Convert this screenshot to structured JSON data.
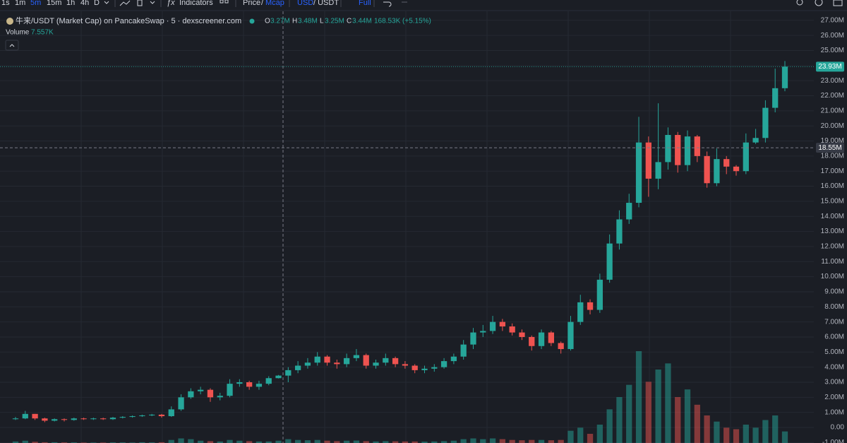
{
  "toolbar": {
    "intervals": [
      "1s",
      "1m",
      "5m",
      "15m",
      "1h",
      "4h",
      "D"
    ],
    "indicators": "Indicators",
    "price": "Price",
    "price_sep": "/",
    "mcap": "Mcap",
    "usd": "USD",
    "usdt": "/ USDT",
    "full": "Full"
  },
  "legend": {
    "title": "牛来/USDT (Market Cap) on PancakeSwap · 5 · dexscreener.com",
    "o_label": "O",
    "o": "3.27M",
    "h_label": "H",
    "h": "3.48M",
    "l_label": "L",
    "l": "3.25M",
    "c_label": "C",
    "c": "3.44M",
    "change": "168.53K (+5.15%)",
    "volume_label": "Volume",
    "volume": "7.557K"
  },
  "chart_data": {
    "type": "candlestick",
    "up_color": "#26a69a",
    "down_color": "#ef5350",
    "open": [
      0.55,
      0.6,
      0.9,
      0.6,
      0.45,
      0.55,
      0.5,
      0.6,
      0.55,
      0.6,
      0.55,
      0.65,
      0.7,
      0.75,
      0.8,
      0.85,
      0.75,
      1.2,
      2.0,
      2.4,
      2.5,
      2.0,
      2.1,
      2.9,
      3.0,
      2.7,
      2.9,
      3.27,
      3.44,
      3.8,
      4.1,
      4.3,
      4.7,
      4.3,
      4.2,
      4.6,
      4.8,
      4.1,
      4.3,
      4.6,
      4.2,
      4.1,
      3.8,
      3.9,
      4.0,
      4.4,
      4.7,
      5.5,
      6.3,
      6.4,
      7.0,
      6.7,
      6.3,
      6.0,
      5.4,
      6.3,
      5.6,
      5.2,
      7.0,
      8.3,
      7.8,
      9.8,
      12.2,
      13.8,
      14.9,
      18.9,
      16.5,
      17.6,
      19.4,
      17.4,
      19.3,
      18.0,
      16.2,
      17.8,
      17.3,
      17.0,
      18.9,
      19.2,
      21.2,
      22.5
    ],
    "high": [
      0.7,
      1.1,
      0.9,
      0.65,
      0.6,
      0.6,
      0.65,
      0.65,
      0.65,
      0.65,
      0.7,
      0.75,
      0.8,
      0.85,
      0.9,
      0.9,
      1.4,
      2.2,
      2.6,
      2.7,
      2.6,
      2.3,
      3.2,
      3.2,
      3.1,
      3.1,
      3.4,
      3.48,
      4.0,
      4.4,
      4.6,
      5.0,
      4.8,
      4.5,
      4.9,
      5.2,
      4.9,
      4.5,
      4.9,
      4.7,
      4.4,
      4.2,
      4.1,
      4.2,
      4.6,
      4.9,
      5.8,
      6.6,
      6.8,
      7.4,
      7.2,
      6.9,
      6.5,
      6.1,
      6.5,
      6.4,
      5.7,
      7.4,
      8.8,
      8.5,
      10.2,
      12.8,
      14.4,
      15.5,
      20.6,
      19.3,
      21.5,
      19.9,
      19.6,
      19.7,
      19.4,
      18.3,
      18.5,
      18.0,
      17.4,
      19.5,
      19.8,
      21.7,
      23.8,
      24.3
    ],
    "low": [
      0.5,
      0.55,
      0.5,
      0.35,
      0.4,
      0.4,
      0.45,
      0.5,
      0.5,
      0.5,
      0.5,
      0.6,
      0.65,
      0.7,
      0.75,
      0.65,
      0.7,
      1.1,
      1.9,
      2.2,
      1.7,
      1.8,
      2.0,
      2.7,
      2.5,
      2.5,
      2.8,
      3.25,
      3.0,
      3.6,
      3.9,
      4.1,
      4.1,
      3.9,
      4.0,
      4.4,
      3.9,
      3.9,
      4.1,
      4.0,
      3.9,
      3.6,
      3.6,
      3.7,
      3.9,
      4.2,
      4.5,
      5.2,
      6.0,
      6.2,
      6.4,
      6.1,
      5.8,
      5.1,
      5.2,
      5.4,
      4.9,
      5.1,
      6.8,
      7.5,
      7.6,
      9.6,
      11.8,
      13.5,
      14.6,
      15.3,
      15.8,
      17.1,
      16.9,
      17.0,
      17.6,
      15.9,
      16.0,
      16.8,
      16.7,
      16.8,
      18.8,
      18.9,
      20.9,
      22.3
    ],
    "close": [
      0.6,
      0.9,
      0.6,
      0.45,
      0.55,
      0.5,
      0.6,
      0.55,
      0.6,
      0.55,
      0.65,
      0.7,
      0.75,
      0.8,
      0.85,
      0.75,
      1.2,
      2.0,
      2.4,
      2.5,
      2.0,
      2.1,
      2.9,
      3.0,
      2.7,
      2.9,
      3.27,
      3.44,
      3.8,
      4.1,
      4.3,
      4.7,
      4.3,
      4.2,
      4.6,
      4.8,
      4.1,
      4.3,
      4.6,
      4.2,
      4.1,
      3.8,
      3.9,
      4.0,
      4.4,
      4.7,
      5.5,
      6.3,
      6.4,
      7.0,
      6.7,
      6.3,
      6.0,
      5.4,
      6.3,
      5.6,
      5.2,
      7.0,
      8.3,
      7.8,
      9.8,
      12.2,
      13.8,
      14.9,
      18.9,
      16.5,
      17.6,
      19.4,
      17.4,
      19.3,
      18.0,
      16.2,
      17.8,
      17.3,
      17.0,
      18.9,
      19.2,
      21.2,
      22.5,
      23.93
    ],
    "volume": [
      1,
      1.5,
      0.8,
      0.5,
      0.5,
      0.4,
      0.4,
      0.3,
      0.3,
      0.3,
      0.4,
      0.4,
      0.3,
      0.5,
      0.4,
      0.5,
      2,
      3,
      2.5,
      1.5,
      1.2,
      1,
      2,
      1.5,
      1.2,
      1,
      1,
      1.5,
      2.5,
      2,
      1.8,
      2,
      1.5,
      1.2,
      1.5,
      1.6,
      1.2,
      1,
      1.2,
      1.1,
      1,
      1,
      0.9,
      1,
      1.2,
      1.5,
      2.5,
      3,
      2.5,
      3,
      2.5,
      2,
      1.8,
      2,
      2,
      1.8,
      2,
      8,
      10,
      6,
      12,
      22,
      30,
      38,
      60,
      40,
      48,
      52,
      30,
      35,
      25,
      18,
      14,
      10,
      9,
      12,
      10,
      15,
      18,
      7.557
    ],
    "ylim": [
      -1.03,
      27.6
    ],
    "yticks": [
      {
        "value": -1,
        "label": "-1.00M"
      },
      {
        "value": 0,
        "label": "0.00"
      },
      {
        "value": 1,
        "label": "1.00M"
      },
      {
        "value": 2,
        "label": "2.00M"
      },
      {
        "value": 3,
        "label": "3.00M"
      },
      {
        "value": 4,
        "label": "4.00M"
      },
      {
        "value": 5,
        "label": "5.00M"
      },
      {
        "value": 6,
        "label": "6.00M"
      },
      {
        "value": 7,
        "label": "7.00M"
      },
      {
        "value": 8,
        "label": "8.00M"
      },
      {
        "value": 9,
        "label": "9.00M"
      },
      {
        "value": 10,
        "label": "10.00M"
      },
      {
        "value": 11,
        "label": "11.00M"
      },
      {
        "value": 12,
        "label": "12.00M"
      },
      {
        "value": 13,
        "label": "13.00M"
      },
      {
        "value": 14,
        "label": "14.00M"
      },
      {
        "value": 15,
        "label": "15.00M"
      },
      {
        "value": 16,
        "label": "16.00M"
      },
      {
        "value": 17,
        "label": "17.00M"
      },
      {
        "value": 18,
        "label": "18.00M"
      },
      {
        "value": 19,
        "label": "19.00M"
      },
      {
        "value": 20,
        "label": "20.00M"
      },
      {
        "value": 21,
        "label": "21.00M"
      },
      {
        "value": 22,
        "label": "22.00M"
      },
      {
        "value": 23,
        "label": "23.00M"
      },
      {
        "value": 24,
        "label": "24.00M"
      },
      {
        "value": 25,
        "label": "25.00M"
      },
      {
        "value": 26,
        "label": "26.00M"
      },
      {
        "value": 27,
        "label": "27.00M"
      }
    ],
    "grid": true,
    "last_price": {
      "value": 23.93,
      "label": "23.93M"
    },
    "crosshair": {
      "value": 18.55,
      "label": "18.55M"
    }
  }
}
